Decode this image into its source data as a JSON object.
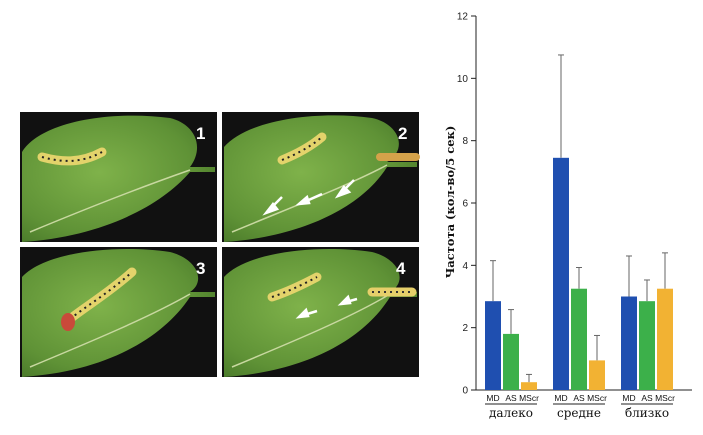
{
  "figure": {
    "panels": [
      {
        "number": "1"
      },
      {
        "number": "2"
      },
      {
        "number": "3"
      },
      {
        "number": "4"
      }
    ]
  },
  "chart_data": {
    "type": "bar",
    "ylabel": "Частота (кол-во/5 сек)",
    "ylim": [
      0,
      12
    ],
    "yticks": [
      0,
      2,
      4,
      6,
      8,
      10,
      12
    ],
    "groups": [
      "далеко",
      "средне",
      "близко"
    ],
    "series": [
      {
        "name": "MD",
        "color": "#1f4fb0",
        "values": [
          2.85,
          7.45,
          3.0
        ],
        "errors": [
          1.3,
          3.3,
          1.3
        ]
      },
      {
        "name": "AS",
        "color": "#3cb04a",
        "values": [
          1.8,
          3.25,
          2.85
        ],
        "errors": [
          0.78,
          0.68,
          0.68
        ]
      },
      {
        "name": "MScr",
        "color": "#f2b233",
        "values": [
          0.25,
          0.95,
          3.25
        ],
        "errors": [
          0.25,
          0.8,
          1.15
        ]
      }
    ],
    "grid": false
  }
}
